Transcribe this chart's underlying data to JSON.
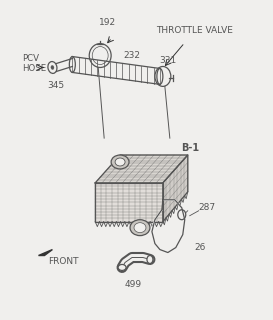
{
  "bg_color": "#f0efed",
  "line_color": "#555555",
  "dark_color": "#333333",
  "label_color": "#555555",
  "figsize": [
    2.73,
    3.2
  ],
  "dpi": 100,
  "labels": {
    "pcv_hose": "PCV\nHOSE",
    "throttle_valve": "THROTTLE VALVE",
    "front": "FRONT",
    "b1": "B-1",
    "n192": "192",
    "n232": "232",
    "n331": "331",
    "n345": "345",
    "n287": "287",
    "n26": "26",
    "n499": "499"
  }
}
